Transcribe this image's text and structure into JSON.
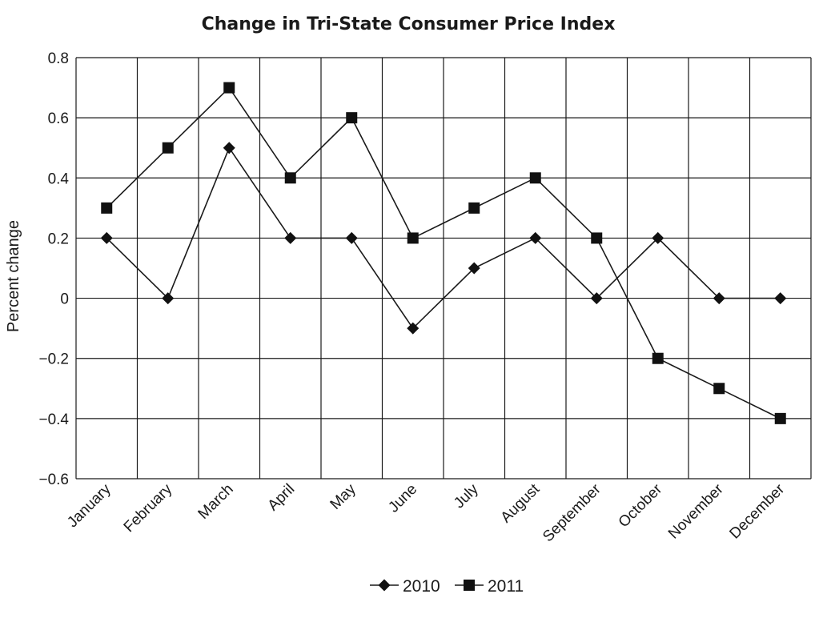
{
  "chart_data": {
    "type": "line",
    "title": "Change in Tri-State Consumer Price Index",
    "xlabel": "",
    "ylabel": "Percent change",
    "categories": [
      "January",
      "February",
      "March",
      "April",
      "May",
      "June",
      "July",
      "August",
      "September",
      "October",
      "November",
      "December"
    ],
    "ylim": [
      -0.6,
      0.8
    ],
    "yticks": [
      0.8,
      0.6,
      0.4,
      0.2,
      0,
      -0.2,
      -0.4,
      -0.6
    ],
    "ytick_labels": [
      "0.8",
      "0.6",
      "0.4",
      "0.2",
      "0",
      "−0.2",
      "−0.4",
      "−0.6"
    ],
    "grid": true,
    "legend_position": "bottom",
    "series": [
      {
        "name": "2010",
        "marker": "diamond",
        "values": [
          0.2,
          0,
          0.5,
          0.2,
          0.2,
          -0.1,
          0.1,
          0.2,
          0,
          0.2,
          0,
          0
        ]
      },
      {
        "name": "2011",
        "marker": "square",
        "values": [
          0.3,
          0.5,
          0.7,
          0.4,
          0.6,
          0.2,
          0.3,
          0.4,
          0.2,
          -0.2,
          -0.3,
          -0.4
        ]
      }
    ]
  }
}
